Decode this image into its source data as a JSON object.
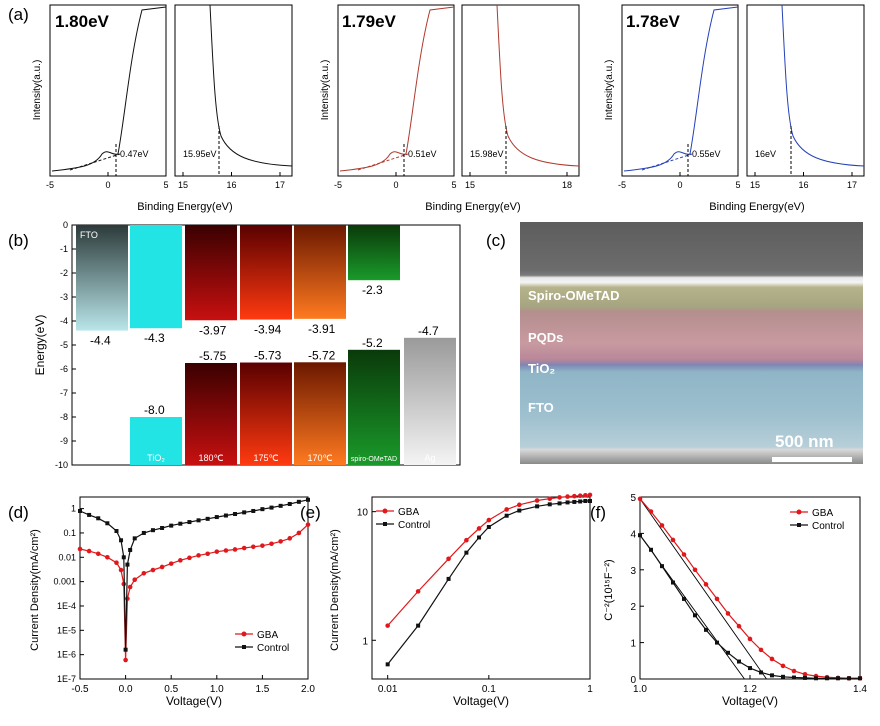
{
  "panels": {
    "a": "(a)",
    "b": "(b)",
    "c": "(c)",
    "d": "(d)",
    "e": "(e)",
    "f": "(f)"
  },
  "colors": {
    "black": "#111111",
    "red": "#b03a2e",
    "blue": "#2540b8",
    "gba": "#e0181b",
    "control": "#111111"
  },
  "ups": [
    {
      "gap": "1.80eV",
      "color": "black",
      "left": {
        "ticks": [
          "-5",
          "0",
          "5"
        ],
        "cutoff": "0.47eV"
      },
      "right": {
        "ticks": [
          "15",
          "16",
          "17"
        ],
        "cutoff": "15.95eV"
      },
      "ylabel": "Intensity(a.u.)",
      "xlabel": "Binding Energy(eV)"
    },
    {
      "gap": "1.79eV",
      "color": "red",
      "left": {
        "ticks": [
          "-5",
          "0",
          "5"
        ],
        "cutoff": "0.51eV"
      },
      "right": {
        "ticks": [
          "15",
          "18"
        ],
        "cutoff": "15.98eV"
      },
      "ylabel": "Intensity(a.u.)",
      "xlabel": "Binding Energy(eV)"
    },
    {
      "gap": "1.78eV",
      "color": "blue",
      "left": {
        "ticks": [
          "-5",
          "0",
          "5"
        ],
        "cutoff": "0.55eV"
      },
      "right": {
        "ticks": [
          "15",
          "16",
          "17"
        ],
        "cutoff": "16eV"
      },
      "ylabel": "Intensity(a.u.)",
      "xlabel": "Binding Energy(eV)"
    }
  ],
  "chart_data": [
    {
      "panel": "b",
      "type": "bar",
      "ylabel": "Energy(eV)",
      "ylim": [
        -10,
        0
      ],
      "yticks": [
        "0",
        "-1",
        "-2",
        "-3",
        "-4",
        "-5",
        "-6",
        "-7",
        "-8",
        "-9",
        "-10"
      ],
      "layers": [
        {
          "name": "FTO",
          "top": 0,
          "bottom": -4.4,
          "label_bottom": "-4.4",
          "color_top": "#2c3a3a",
          "color_bottom": "#b9e6ea"
        },
        {
          "name": "TiO₂",
          "cb": -4.3,
          "vb": -8.0,
          "label_cb": "-4.3",
          "label_vb": "-8.0",
          "color": "#22e4e4"
        },
        {
          "name": "180℃",
          "cb": -3.97,
          "vb": -5.75,
          "label_cb": "-3.97",
          "label_vb": "-5.75",
          "color_top": "#3a0000",
          "color_bottom": "#c81010"
        },
        {
          "name": "175℃",
          "cb": -3.94,
          "vb": -5.73,
          "label_cb": "-3.94",
          "label_vb": "-5.73",
          "color_top": "#5a0000",
          "color_bottom": "#ff3a10"
        },
        {
          "name": "170℃",
          "cb": -3.91,
          "vb": -5.72,
          "label_cb": "-3.91",
          "label_vb": "-5.72",
          "color_top": "#6b1800",
          "color_bottom": "#ff7a20"
        },
        {
          "name": "spiro-OMeTAD",
          "cb": -2.3,
          "vb": -5.2,
          "label_cb": "-2.3",
          "label_vb": "-5.2",
          "color_top": "#0a3a0a",
          "color_bottom": "#1a9a2a"
        },
        {
          "name": "Ag",
          "top": -4.7,
          "bottom": -10,
          "label_top": "-4.7",
          "color_top": "#9a9a9a",
          "color_bottom": "#f4f4f4"
        }
      ]
    },
    {
      "panel": "d",
      "type": "line",
      "yscale": "log",
      "xlabel": "Voltage(V)",
      "ylabel": "Current Density(mA/cm²)",
      "xlim": [
        -0.5,
        2.0
      ],
      "ylim": [
        1e-07,
        3
      ],
      "xticks": [
        "-0.5",
        "0.0",
        "0.5",
        "1.0",
        "1.5",
        "2.0"
      ],
      "yticks": [
        "1",
        "0.1",
        "0.01",
        "0.001",
        "1E-4",
        "1E-5",
        "1E-6",
        "1E-7"
      ],
      "legend": "bottom-right",
      "series": [
        {
          "name": "GBA",
          "color": "#e0181b",
          "x": [
            -0.5,
            -0.4,
            -0.3,
            -0.2,
            -0.1,
            -0.05,
            -0.02,
            0.0,
            0.02,
            0.05,
            0.1,
            0.2,
            0.3,
            0.4,
            0.5,
            0.6,
            0.7,
            0.8,
            0.9,
            1.0,
            1.1,
            1.2,
            1.3,
            1.4,
            1.5,
            1.6,
            1.7,
            1.8,
            1.9,
            2.0
          ],
          "y": [
            0.022,
            0.018,
            0.014,
            0.01,
            0.006,
            0.003,
            0.0008,
            6e-07,
            0.0002,
            0.0006,
            0.0012,
            0.0022,
            0.003,
            0.004,
            0.0055,
            0.0075,
            0.0095,
            0.012,
            0.014,
            0.017,
            0.019,
            0.021,
            0.024,
            0.027,
            0.03,
            0.036,
            0.045,
            0.06,
            0.1,
            0.22
          ]
        },
        {
          "name": "Control",
          "color": "#111111",
          "x": [
            -0.5,
            -0.4,
            -0.3,
            -0.2,
            -0.1,
            -0.05,
            -0.02,
            0.0,
            0.02,
            0.05,
            0.1,
            0.2,
            0.3,
            0.4,
            0.5,
            0.6,
            0.7,
            0.8,
            0.9,
            1.0,
            1.1,
            1.2,
            1.3,
            1.4,
            1.5,
            1.6,
            1.7,
            1.8,
            1.9,
            2.0
          ],
          "y": [
            0.8,
            0.55,
            0.4,
            0.25,
            0.12,
            0.05,
            0.01,
            1.6e-06,
            0.005,
            0.02,
            0.06,
            0.1,
            0.13,
            0.16,
            0.2,
            0.24,
            0.28,
            0.33,
            0.38,
            0.45,
            0.52,
            0.6,
            0.7,
            0.8,
            0.95,
            1.1,
            1.3,
            1.55,
            1.9,
            2.3
          ]
        }
      ]
    },
    {
      "panel": "e",
      "type": "line",
      "xscale": "log",
      "yscale": "log",
      "xlabel": "Voltage(V)",
      "ylabel": "Current Density(mA/cm²)",
      "xlim": [
        0.007,
        1
      ],
      "ylim": [
        0.5,
        13
      ],
      "xticks": [
        "0.01",
        "0.1",
        "1"
      ],
      "yticks": [
        "1",
        "10"
      ],
      "legend": "top-left",
      "series": [
        {
          "name": "GBA",
          "color": "#e0181b",
          "x": [
            0.01,
            0.02,
            0.04,
            0.06,
            0.08,
            0.1,
            0.15,
            0.2,
            0.3,
            0.4,
            0.5,
            0.6,
            0.7,
            0.8,
            0.9,
            1.0
          ],
          "y": [
            1.3,
            2.4,
            4.3,
            6.0,
            7.4,
            8.6,
            10.4,
            11.3,
            12.2,
            12.6,
            12.9,
            13.1,
            13.2,
            13.3,
            13.4,
            13.5
          ]
        },
        {
          "name": "Control",
          "color": "#111111",
          "x": [
            0.01,
            0.02,
            0.04,
            0.06,
            0.08,
            0.1,
            0.15,
            0.2,
            0.3,
            0.4,
            0.5,
            0.6,
            0.7,
            0.8,
            0.9,
            1.0
          ],
          "y": [
            0.65,
            1.3,
            3.0,
            4.8,
            6.3,
            7.6,
            9.3,
            10.2,
            11.0,
            11.4,
            11.6,
            11.8,
            11.9,
            12.0,
            12.1,
            12.1
          ]
        }
      ]
    },
    {
      "panel": "f",
      "type": "line",
      "xlabel": "Voltage(V)",
      "ylabel": "C⁻²(10¹⁵F⁻²)",
      "xlim": [
        1.0,
        1.4
      ],
      "ylim": [
        0,
        5
      ],
      "xticks": [
        "1.0",
        "1.2",
        "1.4"
      ],
      "yticks": [
        "0",
        "1",
        "2",
        "3",
        "4",
        "5"
      ],
      "legend": "top-right",
      "series": [
        {
          "name": "GBA",
          "color": "#e0181b",
          "x": [
            1.0,
            1.02,
            1.04,
            1.06,
            1.08,
            1.1,
            1.12,
            1.14,
            1.16,
            1.18,
            1.2,
            1.22,
            1.24,
            1.26,
            1.28,
            1.3,
            1.32,
            1.34,
            1.36,
            1.38,
            1.4
          ],
          "y": [
            4.95,
            4.6,
            4.22,
            3.82,
            3.42,
            3.0,
            2.6,
            2.2,
            1.8,
            1.45,
            1.1,
            0.8,
            0.55,
            0.36,
            0.22,
            0.13,
            0.08,
            0.05,
            0.03,
            0.02,
            0.02
          ]
        },
        {
          "name": "Control",
          "color": "#111111",
          "x": [
            1.0,
            1.02,
            1.04,
            1.06,
            1.08,
            1.1,
            1.12,
            1.14,
            1.16,
            1.18,
            1.2,
            1.22,
            1.24,
            1.26,
            1.28,
            1.3,
            1.32,
            1.34,
            1.36,
            1.38,
            1.4
          ],
          "y": [
            3.95,
            3.55,
            3.1,
            2.65,
            2.2,
            1.75,
            1.35,
            1.0,
            0.72,
            0.48,
            0.3,
            0.18,
            0.1,
            0.06,
            0.04,
            0.03,
            0.02,
            0.02,
            0.02,
            0.02,
            0.02
          ]
        }
      ],
      "fit_lines": [
        {
          "series": "GBA",
          "x": [
            1.0,
            1.23
          ],
          "y": [
            4.95,
            0.0
          ]
        },
        {
          "series": "Control",
          "x": [
            1.0,
            1.19
          ],
          "y": [
            3.95,
            0.0
          ]
        }
      ]
    }
  ],
  "sem": {
    "layers": [
      "Spiro-OMeTAD",
      "PQDs",
      "TiO₂",
      "FTO"
    ],
    "scale": "500 nm"
  }
}
